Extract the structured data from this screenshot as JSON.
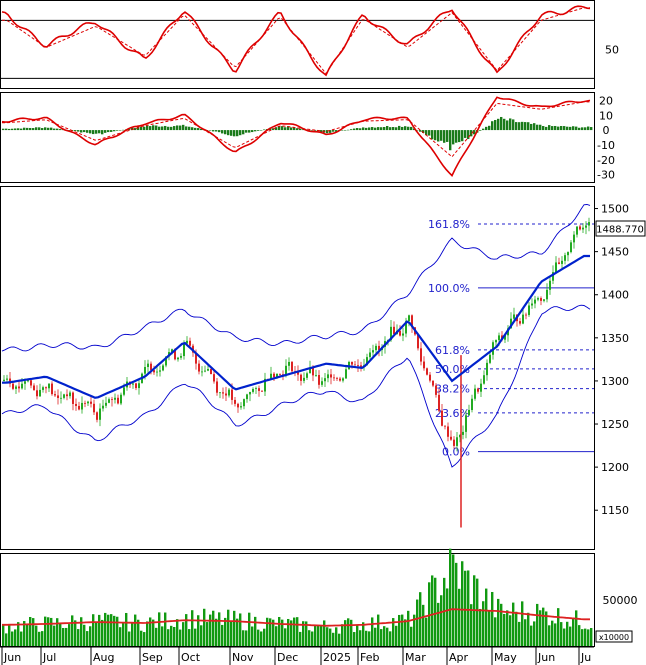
{
  "chart_data": [
    {
      "panel": "stochastic",
      "type": "line",
      "x": [
        "Jun",
        "Jul",
        "Aug",
        "Sep",
        "Oct",
        "Nov",
        "Dec",
        "2025",
        "Feb",
        "Mar",
        "Apr",
        "May",
        "Jun",
        "Ju"
      ],
      "series": [
        {
          "values": [
            85,
            55,
            78,
            40,
            90,
            28,
            88,
            22,
            85,
            55,
            92,
            25,
            85,
            95
          ]
        },
        {
          "values": [
            80,
            52,
            74,
            43,
            86,
            31,
            84,
            25,
            82,
            52,
            88,
            28,
            80,
            93
          ]
        }
      ],
      "levels": [
        80,
        20
      ],
      "tick_labels": [
        "50"
      ],
      "ylim": [
        10,
        100
      ]
    },
    {
      "panel": "macd",
      "type": "bar+line",
      "x": [
        "Jun",
        "Jul",
        "Aug",
        "Sep",
        "Oct",
        "Nov",
        "Dec",
        "2025",
        "Feb",
        "Mar",
        "Apr",
        "May",
        "Jun",
        "Ju"
      ],
      "macd_line": [
        6,
        8,
        -10,
        5,
        10,
        -15,
        5,
        -3,
        7,
        8,
        -31,
        23,
        15,
        20
      ],
      "signal_line": [
        5,
        7,
        -7,
        3,
        8,
        -12,
        3,
        -1,
        6,
        7,
        -18,
        18,
        14,
        19
      ],
      "histogram": [
        1,
        2,
        -3,
        3,
        3,
        -4,
        3,
        -2,
        2,
        3,
        -13,
        8,
        3,
        2
      ],
      "tick_labels": [
        "20",
        "10",
        "0",
        "-10",
        "-20",
        "-30"
      ],
      "ylim": [
        -35,
        25
      ]
    },
    {
      "panel": "price",
      "type": "candlestick",
      "x": [
        "Jun",
        "Jul",
        "Aug",
        "Sep",
        "Oct",
        "Nov",
        "Dec",
        "2025",
        "Feb",
        "Mar",
        "Apr",
        "May",
        "Jun",
        "Ju"
      ],
      "close_path": [
        1300,
        1290,
        1265,
        1310,
        1340,
        1270,
        1315,
        1300,
        1325,
        1370,
        1220,
        1350,
        1400,
        1488
      ],
      "ma20": [
        1298,
        1305,
        1280,
        1305,
        1345,
        1290,
        1305,
        1320,
        1315,
        1370,
        1300,
        1340,
        1415,
        1445
      ],
      "bb_upper": [
        1338,
        1340,
        1340,
        1360,
        1385,
        1348,
        1345,
        1350,
        1360,
        1400,
        1465,
        1440,
        1450,
        1500
      ],
      "bb_lower": [
        1262,
        1270,
        1230,
        1260,
        1300,
        1250,
        1270,
        1290,
        1275,
        1330,
        1200,
        1260,
        1380,
        1385
      ],
      "current_value_label": "1488.770",
      "fibonacci": [
        {
          "label": "161.8%",
          "value": 1482
        },
        {
          "label": "100.0%",
          "value": 1408
        },
        {
          "label": "61.8%",
          "value": 1336
        },
        {
          "label": "50.0%",
          "value": 1314
        },
        {
          "label": "38.2%",
          "value": 1291
        },
        {
          "label": "23.6%",
          "value": 1263
        },
        {
          "label": "0.0%",
          "value": 1218
        }
      ],
      "tick_labels": [
        "1500",
        "1450",
        "1400",
        "1350",
        "1300",
        "1250",
        "1200",
        "1150"
      ],
      "ylim": [
        1105,
        1525
      ]
    },
    {
      "panel": "volume",
      "type": "bar",
      "x": [
        "Jun",
        "Jul",
        "Aug",
        "Sep",
        "Oct",
        "Nov",
        "Dec",
        "2025",
        "Feb",
        "Mar",
        "Apr",
        "May",
        "Jun",
        "Ju"
      ],
      "values": [
        22000,
        24000,
        27000,
        25000,
        30000,
        28000,
        24000,
        21000,
        24000,
        28000,
        85000,
        38000,
        36000,
        26000
      ],
      "ma_values": [
        23000,
        24000,
        26000,
        25000,
        28000,
        27000,
        24000,
        22000,
        23000,
        27000,
        40000,
        38000,
        33000,
        29000
      ],
      "tick_labels": [
        "50000"
      ],
      "unit_label": "x10000",
      "ylim": [
        0,
        100000
      ]
    }
  ],
  "x_axis_labels": [
    "Jun",
    "Jul",
    "Aug",
    "Sep",
    "Oct",
    "Nov",
    "Dec",
    "2025",
    "Feb",
    "Mar",
    "Apr",
    "May",
    "Jun",
    "Ju"
  ],
  "colors": {
    "up": "#22aa22",
    "down": "#dd2222",
    "indicator_main": "#dd0000",
    "ma_line": "#0022cc",
    "bands": "#0000cc",
    "fib": "#2222cc",
    "grid": "#000000",
    "volume": "#119911"
  }
}
